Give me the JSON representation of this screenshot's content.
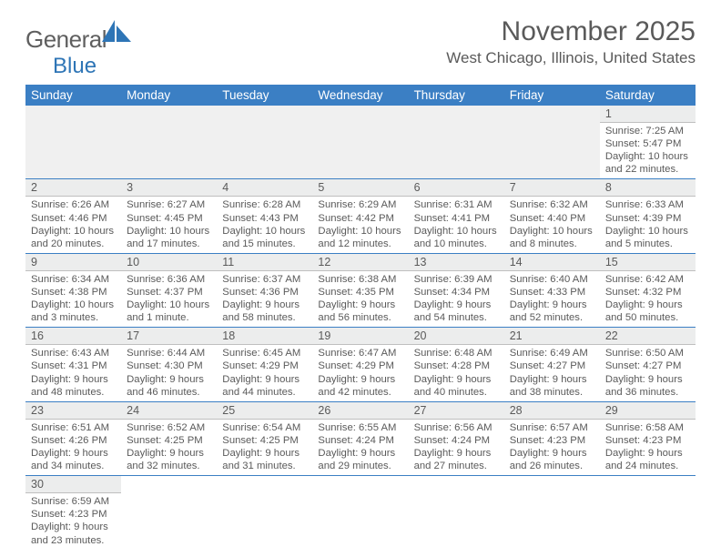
{
  "logo": {
    "general": "General",
    "blue": "Blue"
  },
  "title": "November 2025",
  "location": "West Chicago, Illinois, United States",
  "colors": {
    "header_bg": "#3b7fc4",
    "header_text": "#ffffff",
    "daynum_bg": "#eceded",
    "text": "#5a5a5a",
    "rule": "#3b7fc4",
    "logo_blue": "#2e75b6",
    "empty_bg": "#f0f0f0"
  },
  "day_names": [
    "Sunday",
    "Monday",
    "Tuesday",
    "Wednesday",
    "Thursday",
    "Friday",
    "Saturday"
  ],
  "weeks": [
    {
      "nums": [
        "",
        "",
        "",
        "",
        "",
        "",
        "1"
      ],
      "infos": [
        null,
        null,
        null,
        null,
        null,
        null,
        {
          "sunrise": "Sunrise: 7:25 AM",
          "sunset": "Sunset: 5:47 PM",
          "day1": "Daylight: 10 hours",
          "day2": "and 22 minutes."
        }
      ]
    },
    {
      "nums": [
        "2",
        "3",
        "4",
        "5",
        "6",
        "7",
        "8"
      ],
      "infos": [
        {
          "sunrise": "Sunrise: 6:26 AM",
          "sunset": "Sunset: 4:46 PM",
          "day1": "Daylight: 10 hours",
          "day2": "and 20 minutes."
        },
        {
          "sunrise": "Sunrise: 6:27 AM",
          "sunset": "Sunset: 4:45 PM",
          "day1": "Daylight: 10 hours",
          "day2": "and 17 minutes."
        },
        {
          "sunrise": "Sunrise: 6:28 AM",
          "sunset": "Sunset: 4:43 PM",
          "day1": "Daylight: 10 hours",
          "day2": "and 15 minutes."
        },
        {
          "sunrise": "Sunrise: 6:29 AM",
          "sunset": "Sunset: 4:42 PM",
          "day1": "Daylight: 10 hours",
          "day2": "and 12 minutes."
        },
        {
          "sunrise": "Sunrise: 6:31 AM",
          "sunset": "Sunset: 4:41 PM",
          "day1": "Daylight: 10 hours",
          "day2": "and 10 minutes."
        },
        {
          "sunrise": "Sunrise: 6:32 AM",
          "sunset": "Sunset: 4:40 PM",
          "day1": "Daylight: 10 hours",
          "day2": "and 8 minutes."
        },
        {
          "sunrise": "Sunrise: 6:33 AM",
          "sunset": "Sunset: 4:39 PM",
          "day1": "Daylight: 10 hours",
          "day2": "and 5 minutes."
        }
      ]
    },
    {
      "nums": [
        "9",
        "10",
        "11",
        "12",
        "13",
        "14",
        "15"
      ],
      "infos": [
        {
          "sunrise": "Sunrise: 6:34 AM",
          "sunset": "Sunset: 4:38 PM",
          "day1": "Daylight: 10 hours",
          "day2": "and 3 minutes."
        },
        {
          "sunrise": "Sunrise: 6:36 AM",
          "sunset": "Sunset: 4:37 PM",
          "day1": "Daylight: 10 hours",
          "day2": "and 1 minute."
        },
        {
          "sunrise": "Sunrise: 6:37 AM",
          "sunset": "Sunset: 4:36 PM",
          "day1": "Daylight: 9 hours",
          "day2": "and 58 minutes."
        },
        {
          "sunrise": "Sunrise: 6:38 AM",
          "sunset": "Sunset: 4:35 PM",
          "day1": "Daylight: 9 hours",
          "day2": "and 56 minutes."
        },
        {
          "sunrise": "Sunrise: 6:39 AM",
          "sunset": "Sunset: 4:34 PM",
          "day1": "Daylight: 9 hours",
          "day2": "and 54 minutes."
        },
        {
          "sunrise": "Sunrise: 6:40 AM",
          "sunset": "Sunset: 4:33 PM",
          "day1": "Daylight: 9 hours",
          "day2": "and 52 minutes."
        },
        {
          "sunrise": "Sunrise: 6:42 AM",
          "sunset": "Sunset: 4:32 PM",
          "day1": "Daylight: 9 hours",
          "day2": "and 50 minutes."
        }
      ]
    },
    {
      "nums": [
        "16",
        "17",
        "18",
        "19",
        "20",
        "21",
        "22"
      ],
      "infos": [
        {
          "sunrise": "Sunrise: 6:43 AM",
          "sunset": "Sunset: 4:31 PM",
          "day1": "Daylight: 9 hours",
          "day2": "and 48 minutes."
        },
        {
          "sunrise": "Sunrise: 6:44 AM",
          "sunset": "Sunset: 4:30 PM",
          "day1": "Daylight: 9 hours",
          "day2": "and 46 minutes."
        },
        {
          "sunrise": "Sunrise: 6:45 AM",
          "sunset": "Sunset: 4:29 PM",
          "day1": "Daylight: 9 hours",
          "day2": "and 44 minutes."
        },
        {
          "sunrise": "Sunrise: 6:47 AM",
          "sunset": "Sunset: 4:29 PM",
          "day1": "Daylight: 9 hours",
          "day2": "and 42 minutes."
        },
        {
          "sunrise": "Sunrise: 6:48 AM",
          "sunset": "Sunset: 4:28 PM",
          "day1": "Daylight: 9 hours",
          "day2": "and 40 minutes."
        },
        {
          "sunrise": "Sunrise: 6:49 AM",
          "sunset": "Sunset: 4:27 PM",
          "day1": "Daylight: 9 hours",
          "day2": "and 38 minutes."
        },
        {
          "sunrise": "Sunrise: 6:50 AM",
          "sunset": "Sunset: 4:27 PM",
          "day1": "Daylight: 9 hours",
          "day2": "and 36 minutes."
        }
      ]
    },
    {
      "nums": [
        "23",
        "24",
        "25",
        "26",
        "27",
        "28",
        "29"
      ],
      "infos": [
        {
          "sunrise": "Sunrise: 6:51 AM",
          "sunset": "Sunset: 4:26 PM",
          "day1": "Daylight: 9 hours",
          "day2": "and 34 minutes."
        },
        {
          "sunrise": "Sunrise: 6:52 AM",
          "sunset": "Sunset: 4:25 PM",
          "day1": "Daylight: 9 hours",
          "day2": "and 32 minutes."
        },
        {
          "sunrise": "Sunrise: 6:54 AM",
          "sunset": "Sunset: 4:25 PM",
          "day1": "Daylight: 9 hours",
          "day2": "and 31 minutes."
        },
        {
          "sunrise": "Sunrise: 6:55 AM",
          "sunset": "Sunset: 4:24 PM",
          "day1": "Daylight: 9 hours",
          "day2": "and 29 minutes."
        },
        {
          "sunrise": "Sunrise: 6:56 AM",
          "sunset": "Sunset: 4:24 PM",
          "day1": "Daylight: 9 hours",
          "day2": "and 27 minutes."
        },
        {
          "sunrise": "Sunrise: 6:57 AM",
          "sunset": "Sunset: 4:23 PM",
          "day1": "Daylight: 9 hours",
          "day2": "and 26 minutes."
        },
        {
          "sunrise": "Sunrise: 6:58 AM",
          "sunset": "Sunset: 4:23 PM",
          "day1": "Daylight: 9 hours",
          "day2": "and 24 minutes."
        }
      ]
    },
    {
      "nums": [
        "30",
        "",
        "",
        "",
        "",
        "",
        ""
      ],
      "infos": [
        {
          "sunrise": "Sunrise: 6:59 AM",
          "sunset": "Sunset: 4:23 PM",
          "day1": "Daylight: 9 hours",
          "day2": "and 23 minutes."
        },
        null,
        null,
        null,
        null,
        null,
        null
      ],
      "noborder": true
    }
  ]
}
